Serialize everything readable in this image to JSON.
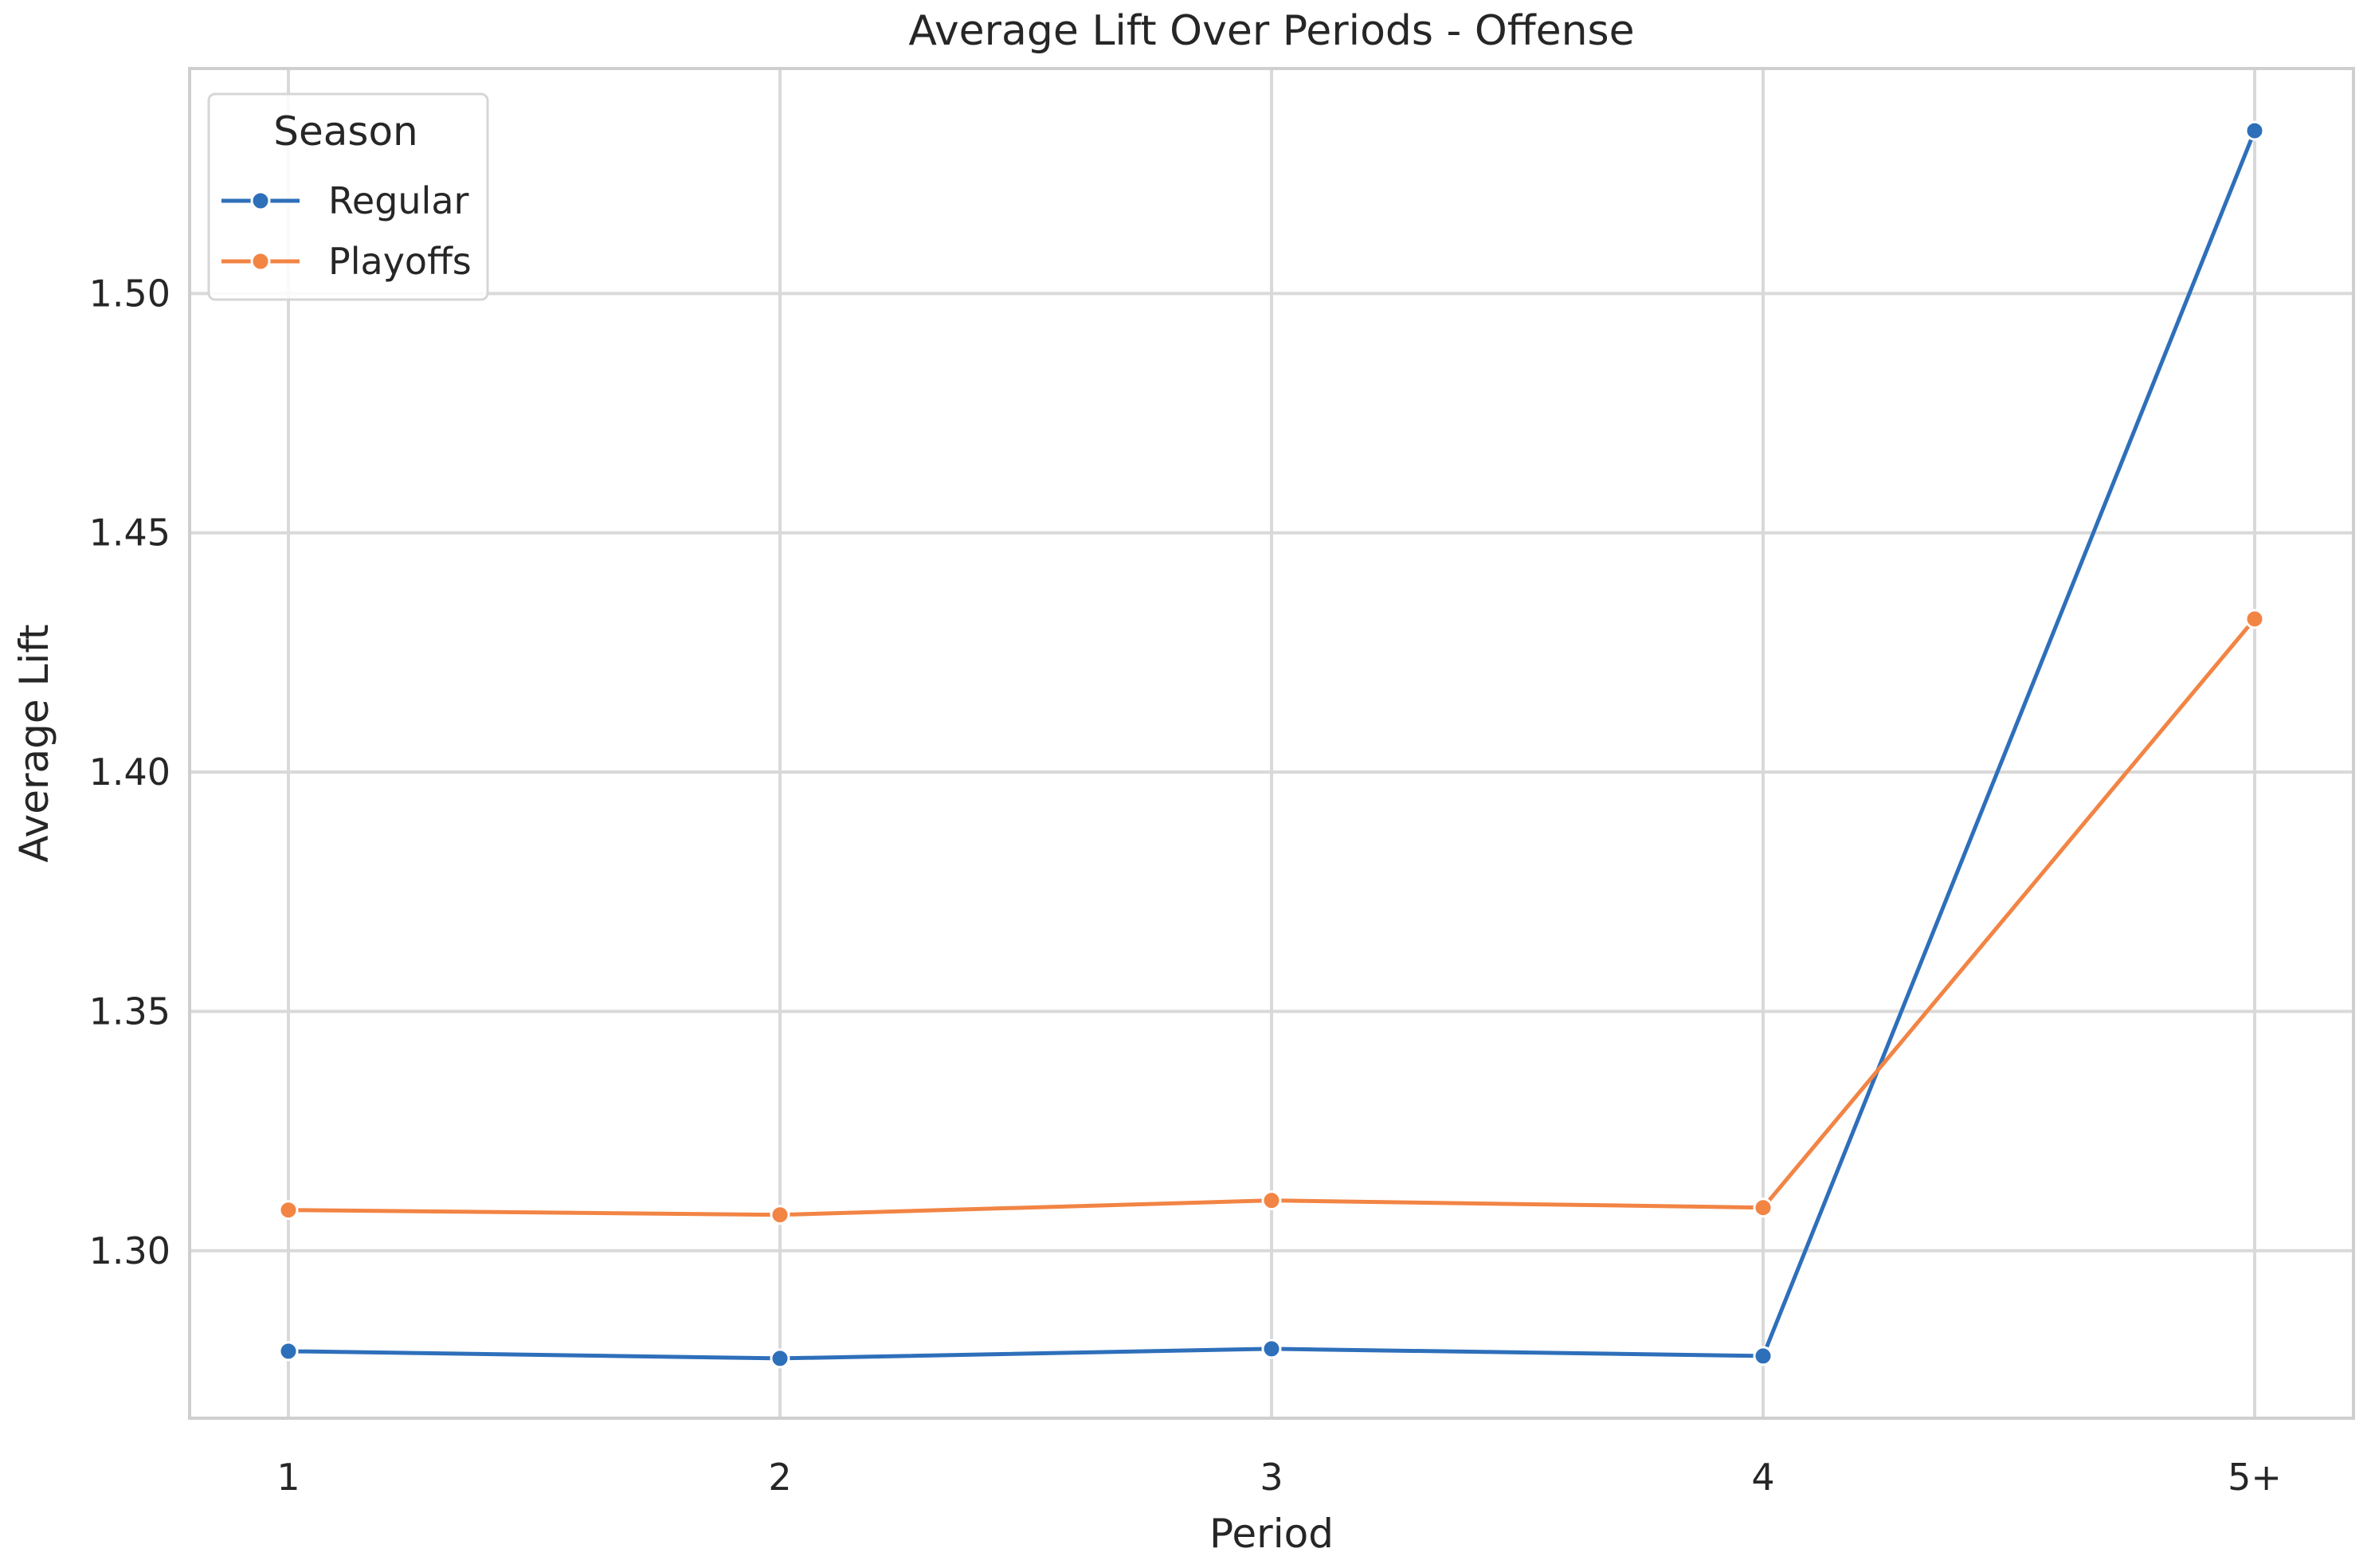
{
  "chart_data": {
    "type": "line",
    "title": "Average Lift Over Periods - Offense",
    "xlabel": "Period",
    "ylabel": "Average Lift",
    "categories": [
      "1",
      "2",
      "3",
      "4",
      "5+"
    ],
    "ylim": [
      1.265,
      1.547
    ],
    "yticks": [
      1.3,
      1.35,
      1.4,
      1.45,
      1.5
    ],
    "ytick_labels": [
      "1.30",
      "1.35",
      "1.40",
      "1.45",
      "1.50"
    ],
    "grid": true,
    "legend": {
      "title": "Season",
      "placement": "top-left"
    },
    "series": [
      {
        "name": "Regular",
        "color": "#2e6fba",
        "marker": "circle",
        "values": [
          1.279,
          1.2775,
          1.2795,
          1.278,
          1.534
        ]
      },
      {
        "name": "Playoffs",
        "color": "#f28444",
        "marker": "circle",
        "values": [
          1.3085,
          1.3075,
          1.3105,
          1.309,
          1.432
        ]
      }
    ]
  }
}
